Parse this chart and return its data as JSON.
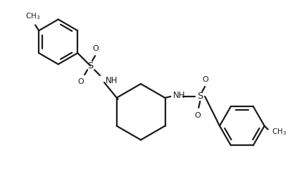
{
  "bg_color": "#ffffff",
  "line_color": "#1a1a1a",
  "line_width": 1.6,
  "figsize": [
    4.22,
    2.47
  ],
  "dpi": 100,
  "xlim": [
    0.0,
    4.22
  ],
  "ylim": [
    0.0,
    2.47
  ]
}
